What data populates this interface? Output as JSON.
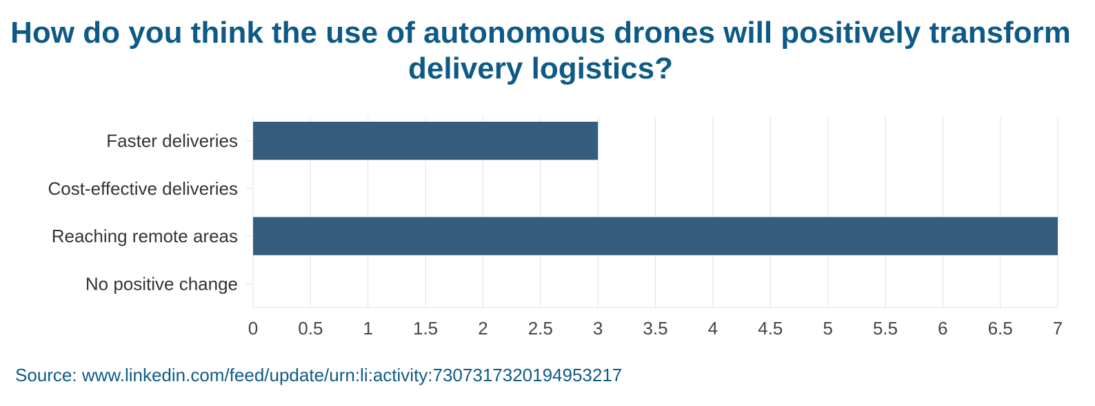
{
  "chart_data": {
    "type": "bar",
    "orientation": "horizontal",
    "title": "How do you think the use of autonomous drones will positively transform delivery logistics?",
    "categories": [
      "Faster deliveries",
      "Cost-effective deliveries",
      "Reaching remote areas",
      "No positive change"
    ],
    "values": [
      3,
      0,
      7,
      0
    ],
    "xlim": [
      0,
      7
    ],
    "xticks": [
      0,
      0.5,
      1,
      1.5,
      2,
      2.5,
      3,
      3.5,
      4,
      4.5,
      5,
      5.5,
      6,
      6.5,
      7
    ],
    "xlabel": "",
    "ylabel": "",
    "grid": true,
    "bar_color": "#365d7e"
  },
  "source": "Source: www.linkedin.com/feed/update/urn:li:activity:7307317320194953217"
}
